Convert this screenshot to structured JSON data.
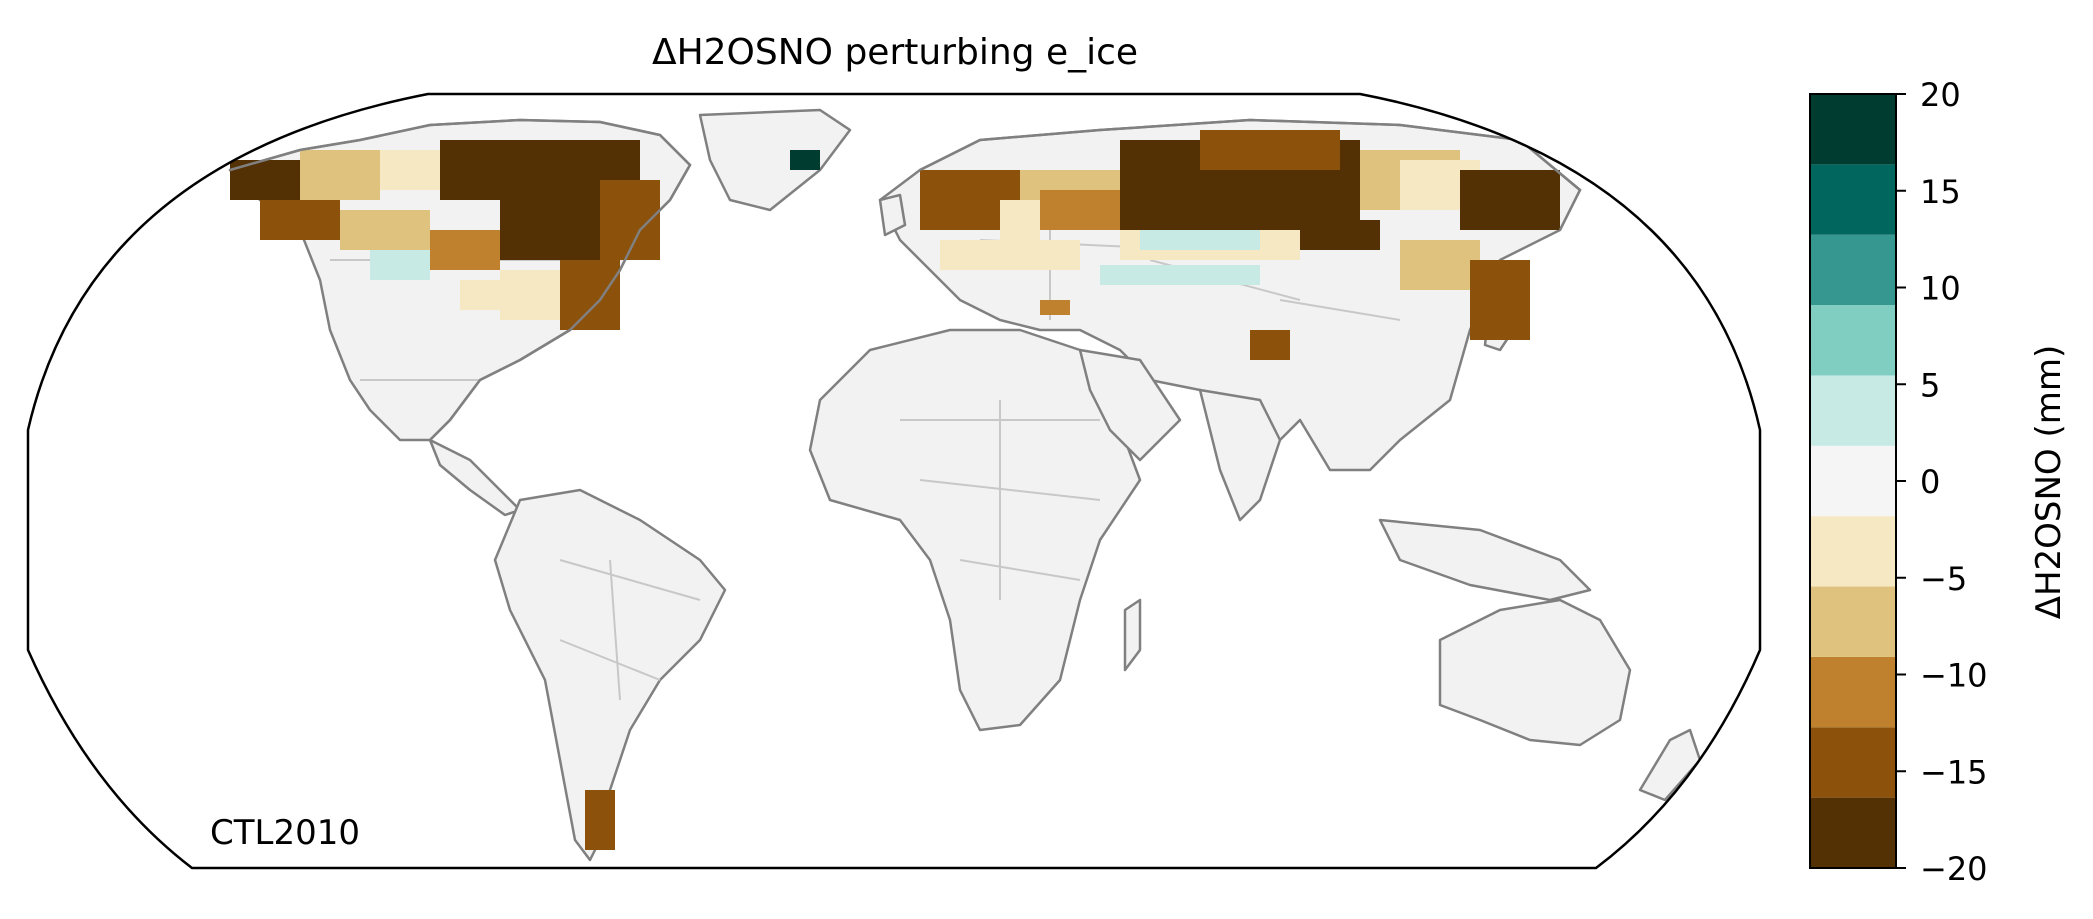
{
  "title": "ΔH2OSNO perturbing e_ice",
  "annotation": "CTL2010",
  "colorbar": {
    "label": "ΔH2OSNO (mm)",
    "vmin": -20,
    "vmax": 20,
    "ticks": [
      {
        "value": 20,
        "label": "20"
      },
      {
        "value": 15,
        "label": "15"
      },
      {
        "value": 10,
        "label": "10"
      },
      {
        "value": 5,
        "label": "5"
      },
      {
        "value": 0,
        "label": "0"
      },
      {
        "value": -5,
        "label": "−5"
      },
      {
        "value": -10,
        "label": "−10"
      },
      {
        "value": -15,
        "label": "−15"
      },
      {
        "value": -20,
        "label": "−20"
      }
    ],
    "bins": [
      {
        "from": -20,
        "to": -16,
        "color": "#543005"
      },
      {
        "from": -16,
        "to": -12,
        "color": "#8c510a"
      },
      {
        "from": -12,
        "to": -8,
        "color": "#bf812d"
      },
      {
        "from": -8,
        "to": -4,
        "color": "#dfc27d"
      },
      {
        "from": -4,
        "to": 0,
        "color": "#f6e8c3"
      },
      {
        "from": 0,
        "to": 4,
        "color": "#f5f5f5"
      },
      {
        "from": 4,
        "to": 8,
        "color": "#c7eae5"
      },
      {
        "from": 8,
        "to": 12,
        "color": "#80cdc1"
      },
      {
        "from": 12,
        "to": 16,
        "color": "#35978f"
      },
      {
        "from": 16,
        "to": 20,
        "color": "#01665e"
      },
      {
        "from": 20,
        "to": 24,
        "color": "#003c30"
      }
    ]
  },
  "colors": {
    "land": "#f2f2f2",
    "coastline": "#808080",
    "borders": "#c8c8c8",
    "frame": "#000000"
  }
}
